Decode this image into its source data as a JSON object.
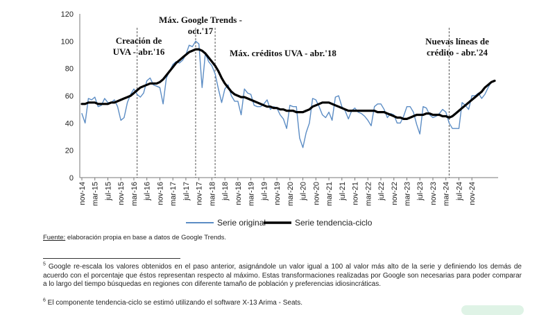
{
  "chart_data": {
    "type": "line",
    "y_ticks": [
      0,
      20,
      40,
      60,
      80,
      100,
      120
    ],
    "ylim": [
      0,
      120
    ],
    "x_tick_labels": [
      "nov-14",
      "mar-15",
      "jul-15",
      "nov-15",
      "mar-16",
      "jul-16",
      "nov-16",
      "mar-17",
      "jul-17",
      "nov-17",
      "mar-18",
      "jul-18",
      "nov-18",
      "mar-19",
      "jul-19",
      "nov-19",
      "mar-20",
      "jul-20",
      "nov-20",
      "mar-21",
      "jul-21",
      "nov-21",
      "mar-22",
      "jul-22",
      "nov-22",
      "mar-23",
      "jul-23",
      "nov-23",
      "mar-24",
      "jul-24",
      "nov-24"
    ],
    "grid": false,
    "legend_position": "bottom",
    "series": [
      {
        "name": "Serie original",
        "color": "#5b8cc4",
        "values": [
          47,
          40,
          58,
          57,
          59,
          52,
          53,
          58,
          55,
          55,
          57,
          52,
          42,
          44,
          55,
          61,
          65,
          61,
          59,
          62,
          71,
          73,
          68,
          67,
          66,
          54,
          73,
          78,
          83,
          85,
          84,
          86,
          90,
          97,
          96,
          100,
          98,
          66,
          91,
          85,
          82,
          76,
          65,
          55,
          65,
          68,
          60,
          56,
          56,
          46,
          65,
          62,
          61,
          53,
          52,
          52,
          54,
          57,
          50,
          52,
          51,
          46,
          43,
          36,
          53,
          52,
          52,
          29,
          22,
          33,
          40,
          58,
          57,
          52,
          46,
          44,
          48,
          42,
          59,
          60,
          52,
          49,
          43,
          49,
          51,
          48,
          47,
          45,
          42,
          38,
          52,
          54,
          54,
          50,
          44,
          47,
          46,
          40,
          40,
          45,
          52,
          52,
          48,
          39,
          32,
          52,
          51,
          46,
          44,
          45,
          47,
          50,
          48,
          40,
          36,
          36,
          36,
          55,
          53,
          50,
          60,
          60,
          62,
          58,
          61,
          66,
          70,
          71
        ]
      },
      {
        "name": "Serie tendencia-ciclo",
        "color": "#000000",
        "values": [
          54,
          54,
          55,
          55,
          55,
          54,
          54,
          54,
          54,
          55,
          55,
          56,
          57,
          58,
          59,
          60,
          62,
          64,
          66,
          67,
          68,
          69,
          69,
          69,
          70,
          72,
          75,
          78,
          81,
          84,
          86,
          88,
          90,
          92,
          93,
          94,
          94,
          93,
          91,
          88,
          85,
          82,
          78,
          73,
          69,
          66,
          63,
          61,
          60,
          59,
          59,
          58,
          57,
          56,
          55,
          54,
          53,
          52,
          52,
          51,
          51,
          50,
          50,
          49,
          49,
          49,
          48,
          48,
          48,
          49,
          50,
          52,
          53,
          54,
          55,
          55,
          55,
          54,
          53,
          52,
          51,
          50,
          49,
          49,
          49,
          49,
          49,
          49,
          49,
          49,
          49,
          48,
          48,
          48,
          47,
          46,
          45,
          44,
          44,
          43,
          43,
          44,
          45,
          46,
          46,
          46,
          47,
          47,
          46,
          46,
          46,
          45,
          45,
          44,
          45,
          47,
          49,
          51,
          53,
          55,
          57,
          59,
          61,
          63,
          66,
          68,
          70,
          71
        ]
      }
    ],
    "annotations": [
      {
        "lines": [
          "Creación de",
          "UVA - abr.'16"
        ],
        "date": "abr-16"
      },
      {
        "lines": [
          "Máx. Google Trends -",
          "oct.'17"
        ],
        "date": "oct-17"
      },
      {
        "lines": [
          "Máx. créditos UVA - abr.'18"
        ],
        "date": "abr-18"
      },
      {
        "lines": [
          "Nuevas líneas de",
          "crédito - abr.'24"
        ],
        "date": "abr-24"
      }
    ]
  },
  "source": {
    "label": "Fuente:",
    "text": " elaboración propia en base a datos de Google Trends."
  },
  "footnotes": [
    {
      "mark": "5",
      "text": " Google re-escala los valores obtenidos en el paso anterior, asignándole un valor igual a 100 al valor más alto de la serie y definiendo los demás de acuerdo con el porcentaje que éstos representan respecto al máximo. Estas transformaciones realizadas por Google son necesarias para poder comparar a lo largo del tiempo búsquedas en regiones con diferente tamaño de población y preferencias idiosincráticas."
    },
    {
      "mark": "6",
      "text": " El componente tendencia-ciclo se estimó utilizando el software X-13 Arima - Seats."
    }
  ]
}
